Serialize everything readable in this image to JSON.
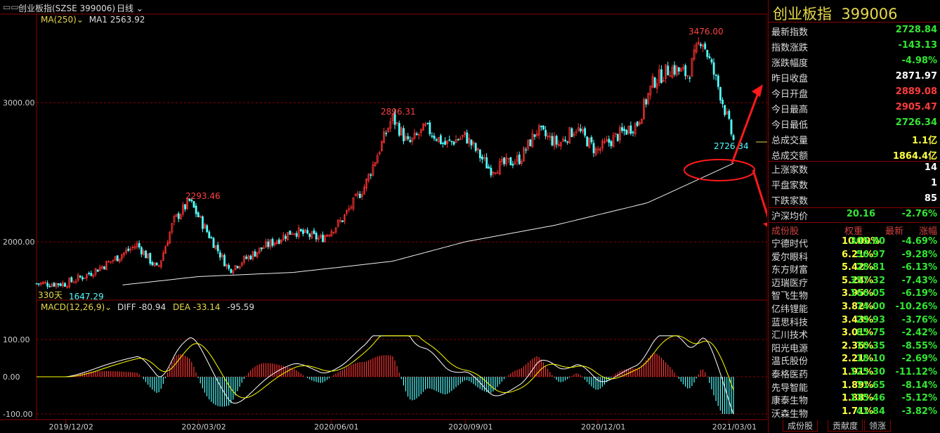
{
  "header": {
    "icon": "window-layout-icon",
    "title": "创业板指(SZSE 399006)",
    "period": "日线"
  },
  "ma": {
    "label": "MA(250)",
    "ma1_label": "MA1",
    "ma1_value": "2563.92"
  },
  "macd": {
    "label": "MACD(12,26,9)",
    "diff_label": "DIFF",
    "diff_value": "-80.94",
    "dea_label": "DEA",
    "dea_value": "-33.14",
    "macd_value": "-95.59"
  },
  "annotations": {
    "high_3476": "3476.00",
    "high_2896": "2896.31",
    "high_2293": "2293.46",
    "low_1647": "1647.29",
    "last_2726": "2726.34",
    "days": "330天"
  },
  "colors": {
    "up": "#ff3232",
    "down": "#54ffff",
    "ma": "#f0f0f0",
    "dea": "#ffff00",
    "grid": "#8a0000",
    "axis_text": "#cccccc"
  },
  "chart_data": [
    {
      "type": "candlestick",
      "title": "创业板指(SZSE 399006) 日线",
      "y_ticks": [
        "3000.00",
        "2000.00"
      ],
      "x_ticks": [
        "2019/12/02",
        "2020/03/02",
        "2020/06/01",
        "2020/09/01",
        "2020/12/01",
        "2021/03/01"
      ],
      "ylim": [
        1600,
        3560
      ],
      "grid": true,
      "close_series_approx": [
        {
          "date": "2019/11/12",
          "close": 1700
        },
        {
          "date": "2019/12/02",
          "close": 1700
        },
        {
          "date": "2019/12/16",
          "close": 1760
        },
        {
          "date": "2020/01/02",
          "close": 1860
        },
        {
          "date": "2020/01/20",
          "close": 1980
        },
        {
          "date": "2020/02/03",
          "close": 1800
        },
        {
          "date": "2020/02/14",
          "close": 2150
        },
        {
          "date": "2020/02/25",
          "close": 2293.46
        },
        {
          "date": "2020/03/02",
          "close": 2180
        },
        {
          "date": "2020/03/23",
          "close": 1800
        },
        {
          "date": "2020/04/14",
          "close": 1950
        },
        {
          "date": "2020/05/06",
          "close": 2080
        },
        {
          "date": "2020/05/25",
          "close": 2020
        },
        {
          "date": "2020/06/08",
          "close": 2150
        },
        {
          "date": "2020/06/24",
          "close": 2400
        },
        {
          "date": "2020/07/13",
          "close": 2896.31
        },
        {
          "date": "2020/07/24",
          "close": 2700
        },
        {
          "date": "2020/08/05",
          "close": 2820
        },
        {
          "date": "2020/08/18",
          "close": 2700
        },
        {
          "date": "2020/09/01",
          "close": 2760
        },
        {
          "date": "2020/09/18",
          "close": 2520
        },
        {
          "date": "2020/10/09",
          "close": 2600
        },
        {
          "date": "2020/10/20",
          "close": 2800
        },
        {
          "date": "2020/11/04",
          "close": 2700
        },
        {
          "date": "2020/11/16",
          "close": 2820
        },
        {
          "date": "2020/11/30",
          "close": 2650
        },
        {
          "date": "2020/12/14",
          "close": 2760
        },
        {
          "date": "2020/12/28",
          "close": 2850
        },
        {
          "date": "2021/01/08",
          "close": 3150
        },
        {
          "date": "2021/01/20",
          "close": 3250
        },
        {
          "date": "2021/02/01",
          "close": 3200
        },
        {
          "date": "2021/02/10",
          "close": 3476.0
        },
        {
          "date": "2021/02/22",
          "close": 3100
        },
        {
          "date": "2021/02/26",
          "close": 2950
        },
        {
          "date": "2021/03/04",
          "close": 2726.34
        }
      ],
      "series": [
        {
          "name": "MA(250)",
          "values_approx": [
            {
              "date": "2020/01/10",
              "v": 1690
            },
            {
              "date": "2020/03/02",
              "v": 1750
            },
            {
              "date": "2020/05/06",
              "v": 1780
            },
            {
              "date": "2020/07/13",
              "v": 1860
            },
            {
              "date": "2020/09/01",
              "v": 2000
            },
            {
              "date": "2020/11/02",
              "v": 2120
            },
            {
              "date": "2021/01/04",
              "v": 2280
            },
            {
              "date": "2021/03/04",
              "v": 2563.92
            }
          ]
        }
      ]
    },
    {
      "type": "bar",
      "title": "MACD(12,26,9)",
      "y_ticks": [
        "100.00",
        "0.00",
        "-100.00"
      ],
      "ylim": [
        -100,
        110
      ],
      "series": [
        {
          "name": "DIFF",
          "last": -80.94
        },
        {
          "name": "DEA",
          "last": -33.14
        },
        {
          "name": "MACD",
          "last": -95.59
        }
      ]
    }
  ],
  "quote": {
    "name": "创业板指",
    "code": "399006",
    "rows": [
      {
        "label": "最新指数",
        "value": "2728.84",
        "color": "#33e633"
      },
      {
        "label": "指数涨跌",
        "value": "-143.13",
        "color": "#33e633"
      },
      {
        "label": "涨跌幅度",
        "value": "-4.98%",
        "color": "#33e633"
      },
      {
        "label": "昨日收盘",
        "value": "2871.97",
        "color": "#ffffff"
      },
      {
        "label": "今日开盘",
        "value": "2889.08",
        "color": "#ff3c3c"
      },
      {
        "label": "今日最高",
        "value": "2905.47",
        "color": "#ff3c3c"
      },
      {
        "label": "今日最低",
        "value": "2726.34",
        "color": "#33e633"
      },
      {
        "label": "总成交量",
        "value": "1.1亿",
        "color": "#ffff40"
      },
      {
        "label": "总成交额",
        "value": "1864.4亿",
        "color": "#ffff40"
      }
    ],
    "breadth": [
      {
        "label": "上涨家数",
        "value": "14",
        "color": "#ffffff"
      },
      {
        "label": "平盘家数",
        "value": "1",
        "color": "#ffffff"
      },
      {
        "label": "下跌家数",
        "value": "85",
        "color": "#ffffff"
      }
    ],
    "avg": {
      "label": "沪深均价",
      "price": "20.16",
      "pct": "-2.76%"
    }
  },
  "components": {
    "headers": [
      "成份股",
      "权重",
      "最新",
      "涨幅"
    ],
    "rows": [
      [
        "宁德时代",
        "10.00%",
        "305.00",
        "-4.69%"
      ],
      [
        "爱尔眼科",
        "6.21%",
        "56.97",
        "-9.28%"
      ],
      [
        "东方财富",
        "5.42%",
        "28.81",
        "-6.13%"
      ],
      [
        "迈瑞医疗",
        "5.24%",
        "357.32",
        "-7.43%"
      ],
      [
        "智飞生物",
        "3.95%",
        "166.05",
        "-6.19%"
      ],
      [
        "亿纬锂能",
        "3.82%",
        "74.00",
        "-10.26%"
      ],
      [
        "蓝思科技",
        "3.43%",
        "29.93",
        "-3.76%"
      ],
      [
        "汇川技术",
        "3.01%",
        "85.75",
        "-2.42%"
      ],
      [
        "阳光电源",
        "2.36%",
        "70.35",
        "-8.55%"
      ],
      [
        "温氏股份",
        "2.21%",
        "18.10",
        "-2.69%"
      ],
      [
        "泰格医药",
        "1.91%",
        "125.30",
        "-11.12%"
      ],
      [
        "先导智能",
        "1.89%",
        "71.65",
        "-8.14%"
      ],
      [
        "康泰生物",
        "1.88%",
        "135.46",
        "-5.12%"
      ],
      [
        "沃森生物",
        "1.71%",
        "41.84",
        "-3.82%"
      ]
    ]
  },
  "tabs": [
    "成份股",
    "贡献度",
    "领涨"
  ]
}
